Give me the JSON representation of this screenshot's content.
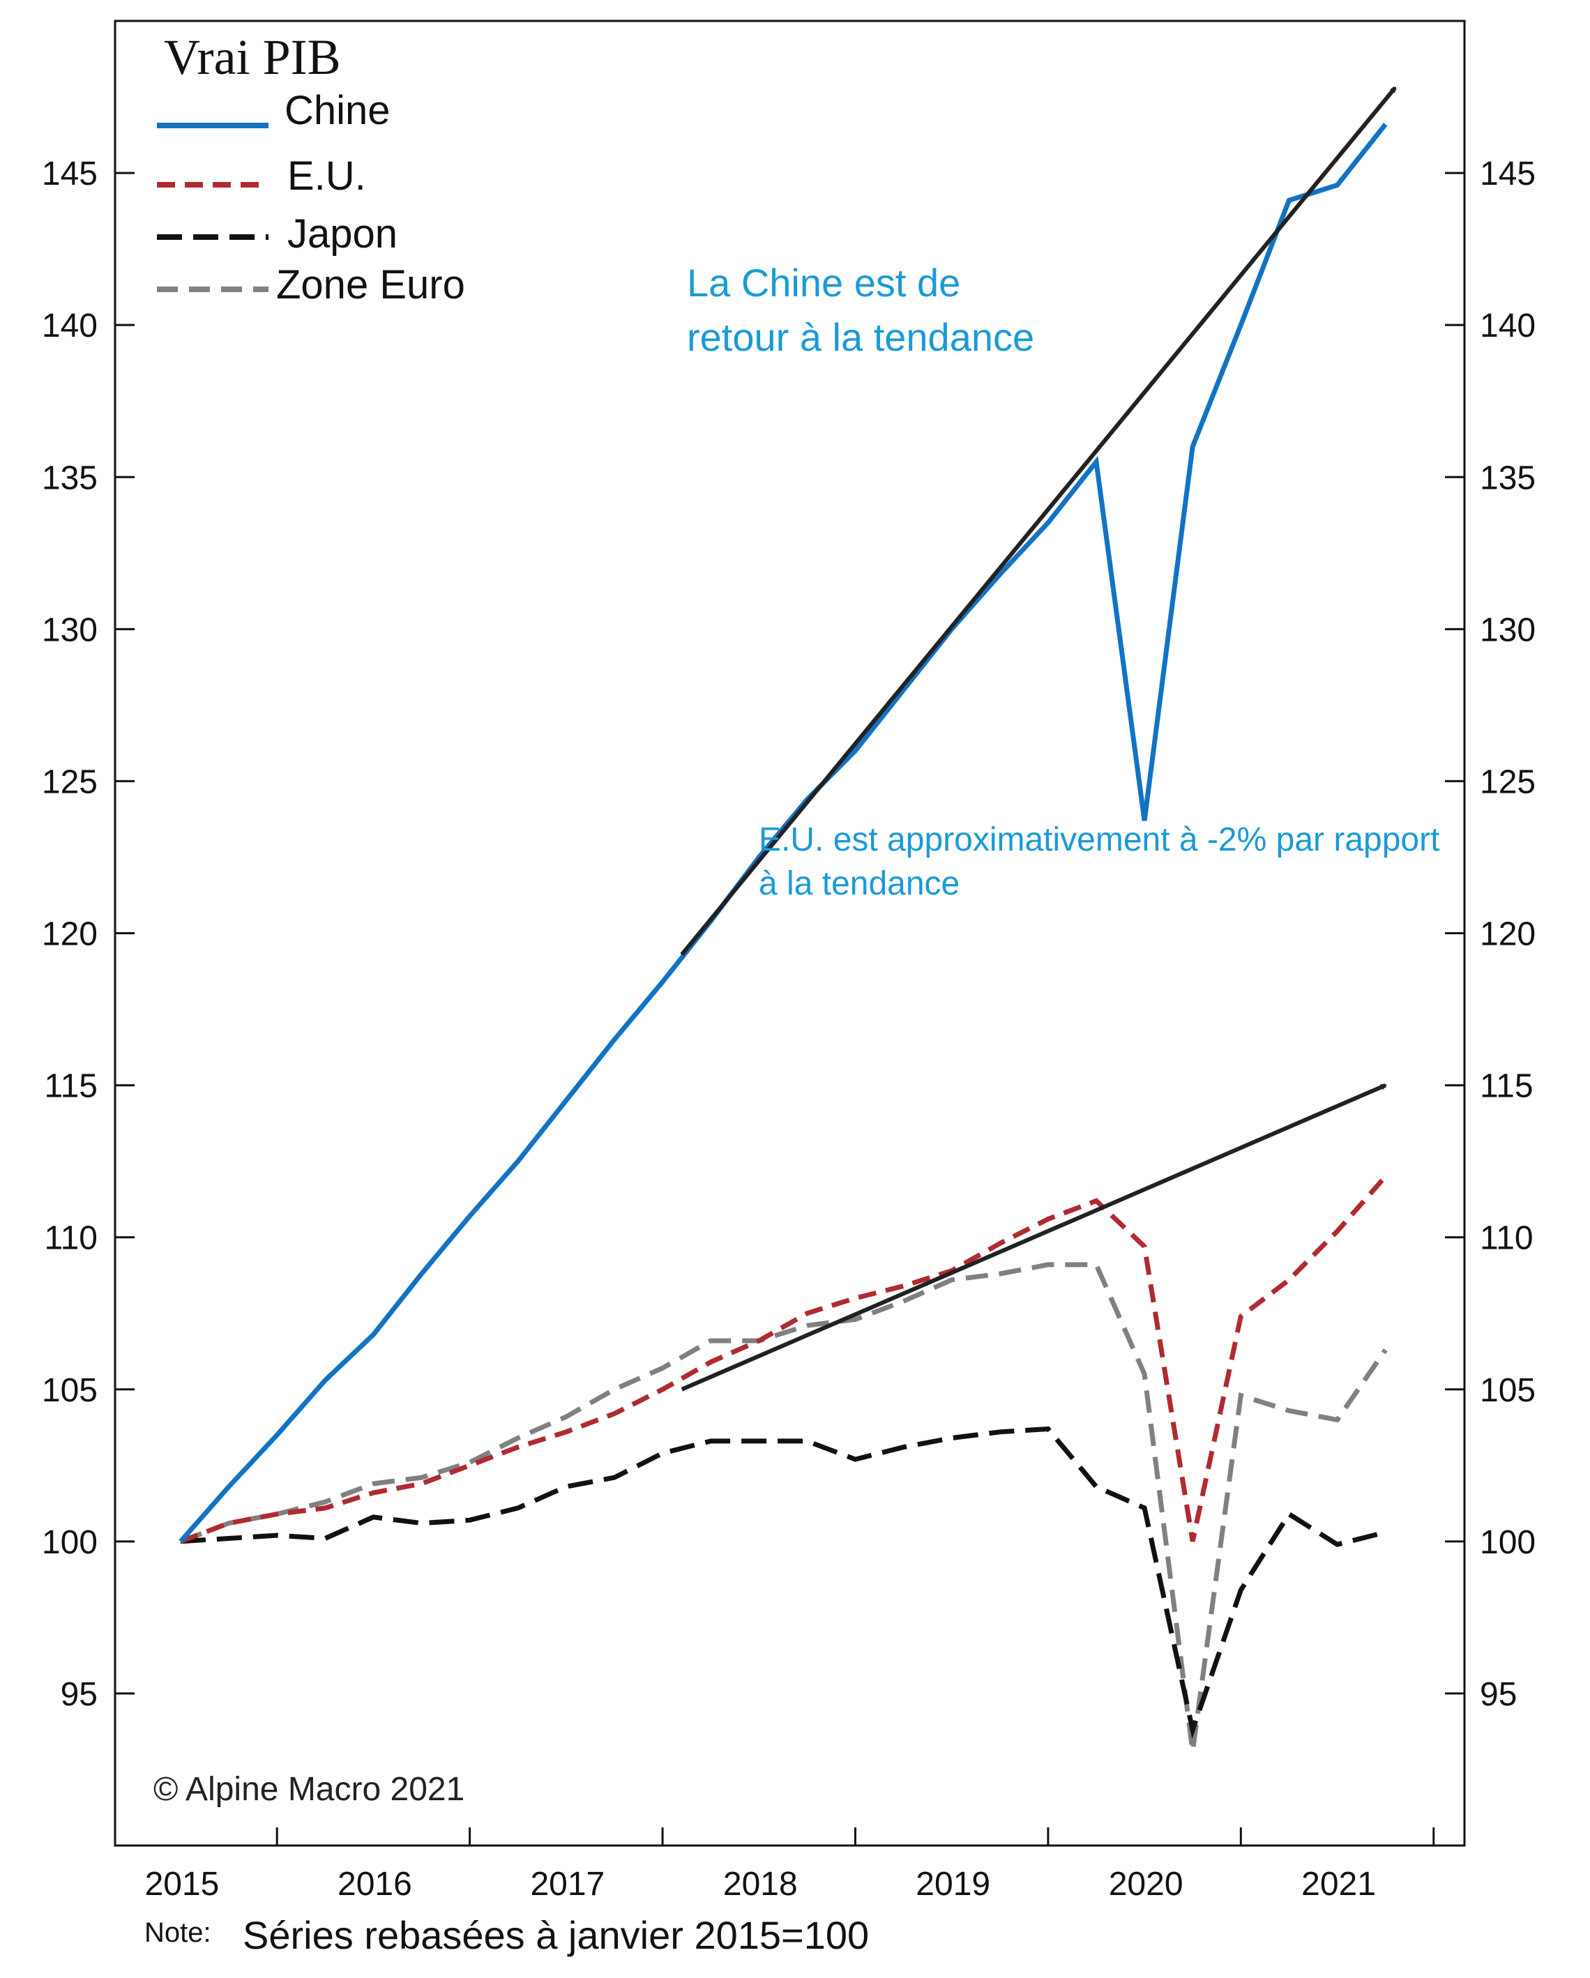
{
  "chart_data": {
    "type": "line",
    "title": "Vrai PIB",
    "note_label": "Note:",
    "note": "Séries rebasées à janvier 2015=100",
    "credit": "© Alpine Macro 2021",
    "x_tick_labels": [
      "2015",
      "2016",
      "2017",
      "2018",
      "2019",
      "2020",
      "2021"
    ],
    "xlim": [
      2014.66,
      2021.66
    ],
    "ylim": [
      90,
      150
    ],
    "y_ticks": [
      95,
      100,
      105,
      110,
      115,
      120,
      125,
      130,
      135,
      140,
      145
    ],
    "legend_position": "top-left",
    "series": [
      {
        "name": "Chine",
        "color": "#1273c4",
        "dash": "solid",
        "points": [
          [
            2015.0,
            100
          ],
          [
            2015.25,
            101.8
          ],
          [
            2015.5,
            103.5
          ],
          [
            2015.75,
            105.3
          ],
          [
            2016.0,
            106.8
          ],
          [
            2016.25,
            108.8
          ],
          [
            2016.5,
            110.7
          ],
          [
            2016.75,
            112.5
          ],
          [
            2017.0,
            114.5
          ],
          [
            2017.25,
            116.5
          ],
          [
            2017.5,
            118.4
          ],
          [
            2017.75,
            120.4
          ],
          [
            2018.0,
            122.5
          ],
          [
            2018.25,
            124.4
          ],
          [
            2018.5,
            126.0
          ],
          [
            2018.75,
            128.0
          ],
          [
            2019.0,
            130.0
          ],
          [
            2019.25,
            131.8
          ],
          [
            2019.5,
            133.5
          ],
          [
            2019.75,
            135.5
          ],
          [
            2020.0,
            123.7
          ],
          [
            2020.25,
            136.0
          ],
          [
            2020.5,
            140.0
          ],
          [
            2020.75,
            144.1
          ],
          [
            2021.0,
            144.6
          ],
          [
            2021.25,
            146.6
          ]
        ]
      },
      {
        "name": "E.U.",
        "color": "#b02a30",
        "dash": "dashed",
        "points": [
          [
            2015.0,
            100
          ],
          [
            2015.25,
            100.6
          ],
          [
            2015.5,
            100.9
          ],
          [
            2015.75,
            101.1
          ],
          [
            2016.0,
            101.6
          ],
          [
            2016.25,
            101.9
          ],
          [
            2016.5,
            102.5
          ],
          [
            2016.75,
            103.1
          ],
          [
            2017.0,
            103.6
          ],
          [
            2017.25,
            104.2
          ],
          [
            2017.5,
            105.0
          ],
          [
            2017.75,
            105.9
          ],
          [
            2018.0,
            106.6
          ],
          [
            2018.25,
            107.5
          ],
          [
            2018.5,
            108.0
          ],
          [
            2018.75,
            108.4
          ],
          [
            2019.0,
            108.9
          ],
          [
            2019.25,
            109.8
          ],
          [
            2019.5,
            110.6
          ],
          [
            2019.75,
            111.2
          ],
          [
            2020.0,
            109.7
          ],
          [
            2020.25,
            100.0
          ],
          [
            2020.5,
            107.4
          ],
          [
            2020.75,
            108.6
          ],
          [
            2021.0,
            110.2
          ],
          [
            2021.25,
            112.0
          ]
        ]
      },
      {
        "name": "Japon",
        "color": "#111111",
        "dash": "dashed",
        "points": [
          [
            2015.0,
            100
          ],
          [
            2015.25,
            100.1
          ],
          [
            2015.5,
            100.2
          ],
          [
            2015.75,
            100.1
          ],
          [
            2016.0,
            100.8
          ],
          [
            2016.25,
            100.6
          ],
          [
            2016.5,
            100.7
          ],
          [
            2016.75,
            101.1
          ],
          [
            2017.0,
            101.8
          ],
          [
            2017.25,
            102.1
          ],
          [
            2017.5,
            102.9
          ],
          [
            2017.75,
            103.3
          ],
          [
            2018.0,
            103.3
          ],
          [
            2018.25,
            103.3
          ],
          [
            2018.5,
            102.7
          ],
          [
            2018.75,
            103.1
          ],
          [
            2019.0,
            103.4
          ],
          [
            2019.25,
            103.6
          ],
          [
            2019.5,
            103.7
          ],
          [
            2019.75,
            101.8
          ],
          [
            2020.0,
            101.1
          ],
          [
            2020.25,
            93.8
          ],
          [
            2020.5,
            98.4
          ],
          [
            2020.75,
            100.9
          ],
          [
            2021.0,
            99.9
          ],
          [
            2021.25,
            100.3
          ]
        ]
      },
      {
        "name": "Zone Euro",
        "color": "#808080",
        "dash": "dashed",
        "points": [
          [
            2015.0,
            100
          ],
          [
            2015.25,
            100.6
          ],
          [
            2015.5,
            100.9
          ],
          [
            2015.75,
            101.3
          ],
          [
            2016.0,
            101.9
          ],
          [
            2016.25,
            102.1
          ],
          [
            2016.5,
            102.6
          ],
          [
            2016.75,
            103.4
          ],
          [
            2017.0,
            104.1
          ],
          [
            2017.25,
            105.0
          ],
          [
            2017.5,
            105.7
          ],
          [
            2017.75,
            106.6
          ],
          [
            2018.0,
            106.6
          ],
          [
            2018.25,
            107.1
          ],
          [
            2018.5,
            107.3
          ],
          [
            2018.75,
            107.9
          ],
          [
            2019.0,
            108.6
          ],
          [
            2019.25,
            108.8
          ],
          [
            2019.5,
            109.1
          ],
          [
            2019.75,
            109.1
          ],
          [
            2020.0,
            105.5
          ],
          [
            2020.25,
            93.1
          ],
          [
            2020.5,
            104.8
          ],
          [
            2020.75,
            104.3
          ],
          [
            2021.0,
            104.0
          ],
          [
            2021.25,
            106.3
          ]
        ]
      }
    ],
    "trend_lines": [
      {
        "from": [
          2017.6,
          119.3
        ],
        "to": [
          2021.3,
          147.8
        ]
      },
      {
        "from": [
          2017.6,
          105.0
        ],
        "to": [
          2021.25,
          115.0
        ]
      }
    ],
    "annotations": [
      {
        "lines": [
          "La Chine est de",
          "retour à la tendance"
        ]
      },
      {
        "lines": [
          "E.U. est approximativement à -2% par rapport",
          "à la tendance"
        ]
      }
    ]
  }
}
